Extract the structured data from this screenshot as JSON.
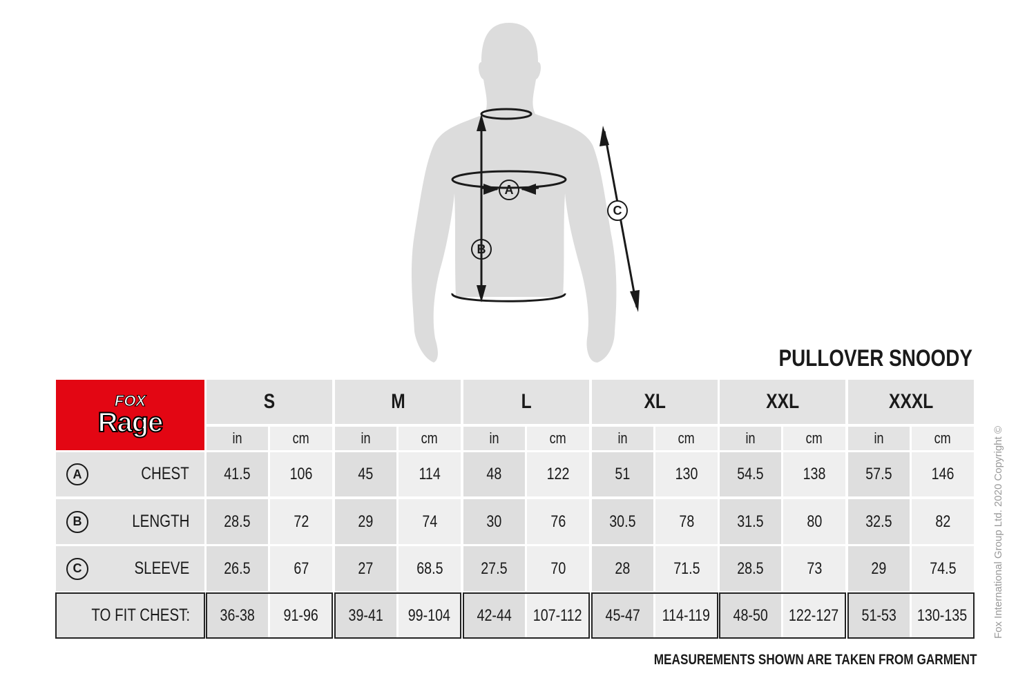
{
  "title": "PULLOVER SNOODY",
  "logo": {
    "text": "FOX Rage",
    "color": "#e30613"
  },
  "sizes": [
    "S",
    "M",
    "L",
    "XL",
    "XXL",
    "XXXL"
  ],
  "units": {
    "in": "in",
    "cm": "cm"
  },
  "rows": [
    {
      "marker": "A",
      "label": "CHEST",
      "values": [
        [
          "41.5",
          "106"
        ],
        [
          "45",
          "114"
        ],
        [
          "48",
          "122"
        ],
        [
          "51",
          "130"
        ],
        [
          "54.5",
          "138"
        ],
        [
          "57.5",
          "146"
        ]
      ]
    },
    {
      "marker": "B",
      "label": "LENGTH",
      "values": [
        [
          "28.5",
          "72"
        ],
        [
          "29",
          "74"
        ],
        [
          "30",
          "76"
        ],
        [
          "30.5",
          "78"
        ],
        [
          "31.5",
          "80"
        ],
        [
          "32.5",
          "82"
        ]
      ]
    },
    {
      "marker": "C",
      "label": "SLEEVE",
      "values": [
        [
          "26.5",
          "67"
        ],
        [
          "27",
          "68.5"
        ],
        [
          "27.5",
          "70"
        ],
        [
          "28",
          "71.5"
        ],
        [
          "28.5",
          "73"
        ],
        [
          "29",
          "74.5"
        ]
      ]
    }
  ],
  "fit": {
    "label": "TO FIT CHEST:",
    "values": [
      [
        "36-38",
        "91-96"
      ],
      [
        "39-41",
        "99-104"
      ],
      [
        "42-44",
        "107-112"
      ],
      [
        "45-47",
        "114-119"
      ],
      [
        "48-50",
        "122-127"
      ],
      [
        "51-53",
        "130-135"
      ]
    ]
  },
  "diagram_markers": {
    "a": "A",
    "b": "B",
    "c": "C"
  },
  "footnote": "MEASUREMENTS SHOWN ARE TAKEN FROM GARMENT",
  "copyright": "Fox International Group Ltd. 2020 Copyright ©"
}
